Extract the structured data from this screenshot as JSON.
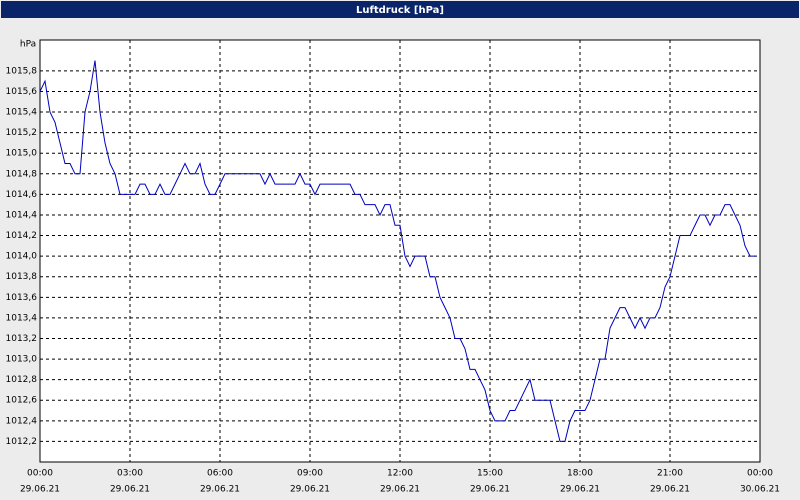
{
  "chart_data": {
    "type": "line",
    "title": "Luftdruck [hPa]",
    "y_label": "hPa",
    "color": "#0000c0",
    "grid": true,
    "xlim": [
      0,
      1440
    ],
    "ylim": [
      1012.0,
      1016.1
    ],
    "xticks": [
      {
        "value": 0,
        "label": "00:00",
        "date": "29.06.21"
      },
      {
        "value": 180,
        "label": "03:00",
        "date": "29.06.21"
      },
      {
        "value": 360,
        "label": "06:00",
        "date": "29.06.21"
      },
      {
        "value": 540,
        "label": "09:00",
        "date": "29.06.21"
      },
      {
        "value": 720,
        "label": "12:00",
        "date": "29.06.21"
      },
      {
        "value": 900,
        "label": "15:00",
        "date": "29.06.21"
      },
      {
        "value": 1080,
        "label": "18:00",
        "date": "29.06.21"
      },
      {
        "value": 1260,
        "label": "21:00",
        "date": "29.06.21"
      },
      {
        "value": 1440,
        "label": "00:00",
        "date": "30.06.21"
      }
    ],
    "yticks": [
      {
        "value": 1012.2,
        "label": "1012,2"
      },
      {
        "value": 1012.4,
        "label": "1012,4"
      },
      {
        "value": 1012.6,
        "label": "1012,6"
      },
      {
        "value": 1012.8,
        "label": "1012,8"
      },
      {
        "value": 1013.0,
        "label": "1013,0"
      },
      {
        "value": 1013.2,
        "label": "1013,2"
      },
      {
        "value": 1013.4,
        "label": "1013,4"
      },
      {
        "value": 1013.6,
        "label": "1013,6"
      },
      {
        "value": 1013.8,
        "label": "1013,8"
      },
      {
        "value": 1014.0,
        "label": "1014,0"
      },
      {
        "value": 1014.2,
        "label": "1014,2"
      },
      {
        "value": 1014.4,
        "label": "1014,4"
      },
      {
        "value": 1014.6,
        "label": "1014,6"
      },
      {
        "value": 1014.8,
        "label": "1014,8"
      },
      {
        "value": 1015.0,
        "label": "1015,0"
      },
      {
        "value": 1015.2,
        "label": "1015,2"
      },
      {
        "value": 1015.4,
        "label": "1015,4"
      },
      {
        "value": 1015.6,
        "label": "1015,6"
      },
      {
        "value": 1015.8,
        "label": "1015,8"
      }
    ],
    "x": [
      0,
      10,
      20,
      30,
      40,
      50,
      60,
      70,
      80,
      90,
      100,
      110,
      120,
      130,
      140,
      150,
      160,
      170,
      180,
      190,
      200,
      210,
      220,
      230,
      240,
      250,
      260,
      270,
      280,
      290,
      300,
      310,
      320,
      330,
      340,
      350,
      360,
      370,
      380,
      390,
      400,
      410,
      420,
      430,
      440,
      450,
      460,
      470,
      480,
      490,
      500,
      510,
      520,
      530,
      540,
      550,
      560,
      570,
      580,
      590,
      600,
      610,
      620,
      630,
      640,
      650,
      660,
      670,
      680,
      690,
      700,
      710,
      720,
      730,
      740,
      750,
      760,
      770,
      780,
      790,
      800,
      810,
      820,
      830,
      840,
      850,
      860,
      870,
      880,
      890,
      900,
      910,
      920,
      930,
      940,
      950,
      960,
      970,
      980,
      990,
      1000,
      1010,
      1020,
      1030,
      1040,
      1050,
      1060,
      1070,
      1080,
      1090,
      1100,
      1110,
      1120,
      1130,
      1140,
      1150,
      1160,
      1170,
      1180,
      1190,
      1200,
      1210,
      1220,
      1230,
      1240,
      1250,
      1260,
      1270,
      1280,
      1290,
      1300,
      1310,
      1320,
      1330,
      1340,
      1350,
      1360,
      1370,
      1380,
      1390,
      1400,
      1410,
      1420,
      1430
    ],
    "values": [
      1015.6,
      1015.7,
      1015.4,
      1015.3,
      1015.1,
      1014.9,
      1014.9,
      1014.8,
      1014.8,
      1015.4,
      1015.6,
      1015.9,
      1015.4,
      1015.1,
      1014.9,
      1014.8,
      1014.6,
      1014.6,
      1014.6,
      1014.6,
      1014.7,
      1014.7,
      1014.6,
      1014.6,
      1014.7,
      1014.6,
      1014.6,
      1014.7,
      1014.8,
      1014.9,
      1014.8,
      1014.8,
      1014.9,
      1014.7,
      1014.6,
      1014.6,
      1014.7,
      1014.8,
      1014.8,
      1014.8,
      1014.8,
      1014.8,
      1014.8,
      1014.8,
      1014.8,
      1014.7,
      1014.8,
      1014.7,
      1014.7,
      1014.7,
      1014.7,
      1014.7,
      1014.8,
      1014.7,
      1014.7,
      1014.6,
      1014.7,
      1014.7,
      1014.7,
      1014.7,
      1014.7,
      1014.7,
      1014.7,
      1014.6,
      1014.6,
      1014.5,
      1014.5,
      1014.5,
      1014.4,
      1014.5,
      1014.5,
      1014.3,
      1014.3,
      1014.0,
      1013.9,
      1014.0,
      1014.0,
      1014.0,
      1013.8,
      1013.8,
      1013.6,
      1013.5,
      1013.4,
      1013.2,
      1013.2,
      1013.1,
      1012.9,
      1012.9,
      1012.8,
      1012.7,
      1012.5,
      1012.4,
      1012.4,
      1012.4,
      1012.5,
      1012.5,
      1012.6,
      1012.7,
      1012.8,
      1012.6,
      1012.6,
      1012.6,
      1012.6,
      1012.4,
      1012.2,
      1012.2,
      1012.4,
      1012.5,
      1012.5,
      1012.5,
      1012.6,
      1012.8,
      1013.0,
      1013.0,
      1013.3,
      1013.4,
      1013.5,
      1013.5,
      1013.4,
      1013.3,
      1013.4,
      1013.3,
      1013.4,
      1013.4,
      1013.5,
      1013.7,
      1013.8,
      1014.0,
      1014.2,
      1014.2,
      1014.2,
      1014.3,
      1014.4,
      1014.4,
      1014.3,
      1014.4,
      1014.4,
      1014.5,
      1014.5,
      1014.4,
      1014.3,
      1014.1,
      1014.0,
      1014.0
    ]
  }
}
